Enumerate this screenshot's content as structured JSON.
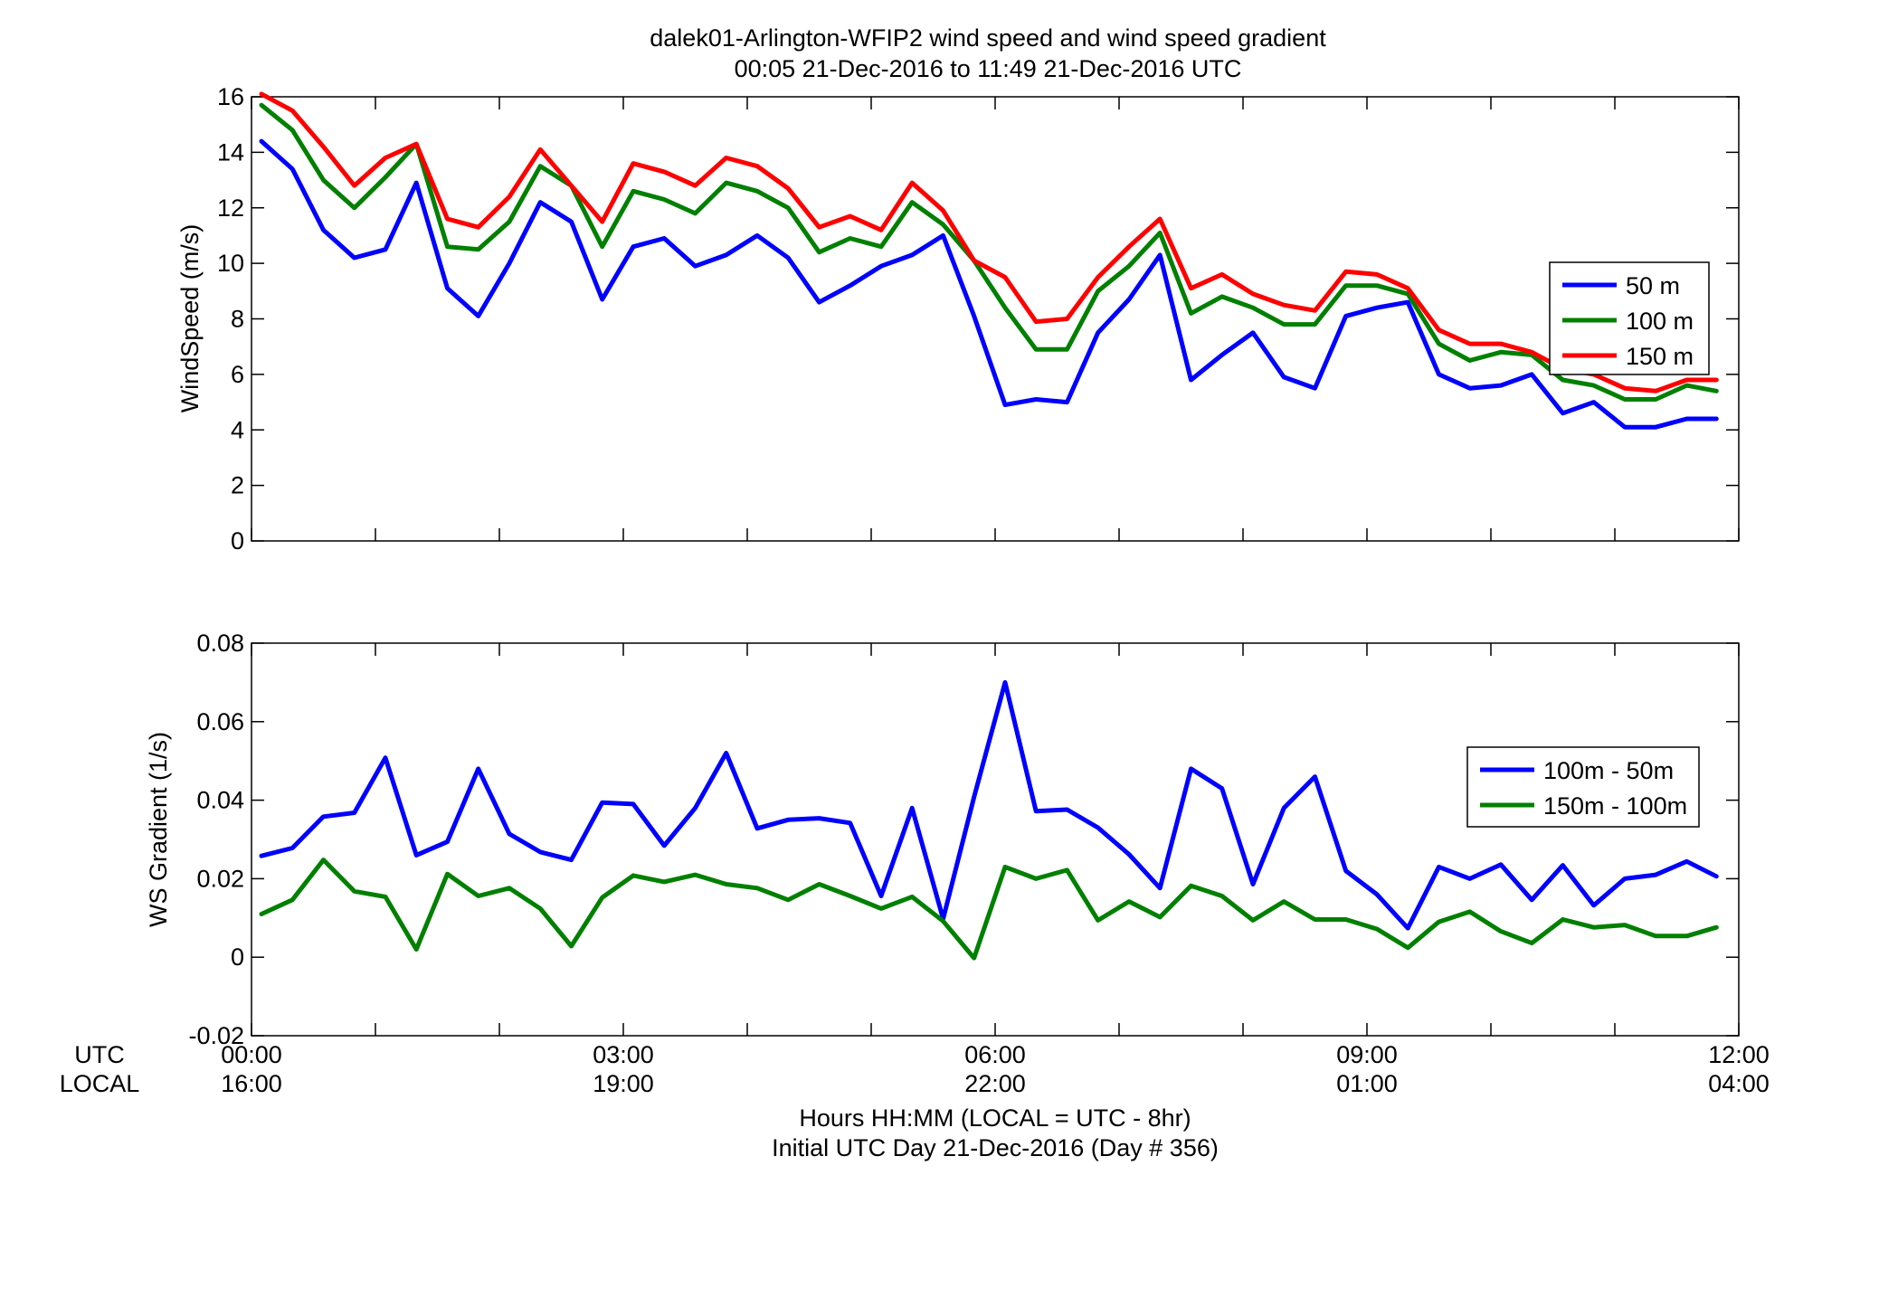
{
  "figure": {
    "title_line1": "dalek01-Arlington-WFIP2  wind speed and wind speed gradient",
    "title_line2": "00:05 21-Dec-2016 to 11:49 21-Dec-2016  UTC",
    "xlabel_line1": "Hours HH:MM  (LOCAL = UTC - 8hr)",
    "xlabel_line2": "Initial UTC Day 21-Dec-2016 (Day # 356)",
    "row_label_utc": "UTC",
    "row_label_local": "LOCAL",
    "x_ticks_utc": [
      "00:00",
      "03:00",
      "06:00",
      "09:00",
      "12:00"
    ],
    "x_ticks_local": [
      "16:00",
      "19:00",
      "22:00",
      "01:00",
      "04:00"
    ]
  },
  "chart_data": [
    {
      "type": "line",
      "ylabel": "WindSpeed (m/s)",
      "xlim": [
        0,
        12
      ],
      "ylim": [
        0,
        16
      ],
      "yticks": [
        "0",
        "2",
        "4",
        "6",
        "8",
        "10",
        "12",
        "14",
        "16"
      ],
      "grid": false,
      "legend_position": "right",
      "x": [
        0.08,
        0.33,
        0.58,
        0.83,
        1.08,
        1.33,
        1.58,
        1.83,
        2.08,
        2.33,
        2.58,
        2.83,
        3.08,
        3.33,
        3.58,
        3.83,
        4.08,
        4.33,
        4.58,
        4.83,
        5.08,
        5.33,
        5.58,
        5.83,
        6.08,
        6.33,
        6.58,
        6.83,
        7.08,
        7.33,
        7.58,
        7.83,
        8.08,
        8.33,
        8.58,
        8.83,
        9.08,
        9.33,
        9.58,
        9.83,
        10.08,
        10.33,
        10.58,
        10.83,
        11.08,
        11.33,
        11.58,
        11.82
      ],
      "series": [
        {
          "name": "50 m",
          "color": "#0000ff",
          "values": [
            14.4,
            13.4,
            11.2,
            10.2,
            10.5,
            12.9,
            9.1,
            8.1,
            10.0,
            12.2,
            11.5,
            8.7,
            10.6,
            10.9,
            9.9,
            10.3,
            11.0,
            10.2,
            8.6,
            9.2,
            9.9,
            10.3,
            11.0,
            8.1,
            4.9,
            5.1,
            5.0,
            7.5,
            8.7,
            10.3,
            5.8,
            6.7,
            7.5,
            5.9,
            5.5,
            8.1,
            8.4,
            8.6,
            6.0,
            5.5,
            5.6,
            6.0,
            4.6,
            5.0,
            4.1,
            4.1,
            4.4,
            4.4
          ]
        },
        {
          "name": "100 m",
          "color": "#008000",
          "values": [
            15.7,
            14.8,
            13.0,
            12.0,
            13.1,
            14.3,
            10.6,
            10.5,
            11.5,
            13.5,
            12.8,
            10.6,
            12.6,
            12.3,
            11.8,
            12.9,
            12.6,
            12.0,
            10.4,
            10.9,
            10.6,
            12.2,
            11.4,
            10.1,
            8.4,
            6.9,
            6.9,
            9.0,
            9.9,
            11.1,
            8.2,
            8.8,
            8.4,
            7.8,
            7.8,
            9.2,
            9.2,
            8.9,
            7.1,
            6.5,
            6.8,
            6.7,
            5.8,
            5.6,
            5.1,
            5.1,
            5.6,
            5.4
          ]
        },
        {
          "name": "150 m",
          "color": "#ff0000",
          "values": [
            16.1,
            15.5,
            14.2,
            12.8,
            13.8,
            14.3,
            11.6,
            11.3,
            12.4,
            14.1,
            12.8,
            11.5,
            13.6,
            13.3,
            12.8,
            13.8,
            13.5,
            12.7,
            11.3,
            11.7,
            11.2,
            12.9,
            11.9,
            10.1,
            9.5,
            7.9,
            8.0,
            9.5,
            10.6,
            11.6,
            9.1,
            9.6,
            8.9,
            8.5,
            8.3,
            9.7,
            9.6,
            9.1,
            7.6,
            7.1,
            7.1,
            6.8,
            6.2,
            6.0,
            5.5,
            5.4,
            5.8,
            5.8
          ]
        }
      ]
    },
    {
      "type": "line",
      "ylabel": "WS Gradient (1/s)",
      "xlim": [
        0,
        12
      ],
      "ylim": [
        -0.02,
        0.08
      ],
      "yticks": [
        "-0.02",
        "0",
        "0.02",
        "0.04",
        "0.06",
        "0.08"
      ],
      "grid": false,
      "legend_position": "right",
      "x": [
        0.08,
        0.33,
        0.58,
        0.83,
        1.08,
        1.33,
        1.58,
        1.83,
        2.08,
        2.33,
        2.58,
        2.83,
        3.08,
        3.33,
        3.58,
        3.83,
        4.08,
        4.33,
        4.58,
        4.83,
        5.08,
        5.33,
        5.58,
        5.83,
        6.08,
        6.33,
        6.58,
        6.83,
        7.08,
        7.33,
        7.58,
        7.83,
        8.08,
        8.33,
        8.58,
        8.83,
        9.08,
        9.33,
        9.58,
        9.83,
        10.08,
        10.33,
        10.58,
        10.83,
        11.08,
        11.33,
        11.58,
        11.82
      ],
      "series": [
        {
          "name": "100m - 50m",
          "color": "#0000ff",
          "values": [
            0.0258,
            0.0278,
            0.0358,
            0.0368,
            0.0508,
            0.026,
            0.0294,
            0.048,
            0.0314,
            0.0268,
            0.0248,
            0.0394,
            0.039,
            0.0284,
            0.038,
            0.052,
            0.0328,
            0.035,
            0.0354,
            0.0342,
            0.0156,
            0.038,
            0.0098,
            0.0408,
            0.07,
            0.0372,
            0.0376,
            0.033,
            0.0262,
            0.0176,
            0.048,
            0.043,
            0.0186,
            0.038,
            0.046,
            0.022,
            0.016,
            0.0074,
            0.023,
            0.02,
            0.0236,
            0.0146,
            0.0234,
            0.0132,
            0.02,
            0.021,
            0.0244,
            0.0206
          ]
        },
        {
          "name": "150m - 100m",
          "color": "#008000",
          "values": [
            0.011,
            0.0146,
            0.0248,
            0.0168,
            0.0154,
            0.002,
            0.0212,
            0.0156,
            0.0176,
            0.0124,
            0.0028,
            0.0152,
            0.0208,
            0.0192,
            0.021,
            0.0186,
            0.0176,
            0.0146,
            0.0186,
            0.0156,
            0.0124,
            0.0154,
            0.0092,
            -0.0002,
            0.023,
            0.02,
            0.0222,
            0.0094,
            0.0142,
            0.0102,
            0.0182,
            0.0156,
            0.0094,
            0.0142,
            0.0096,
            0.0096,
            0.0072,
            0.0024,
            0.009,
            0.0116,
            0.0066,
            0.0036,
            0.0096,
            0.0076,
            0.0082,
            0.0054,
            0.0054,
            0.0076
          ]
        }
      ]
    }
  ]
}
